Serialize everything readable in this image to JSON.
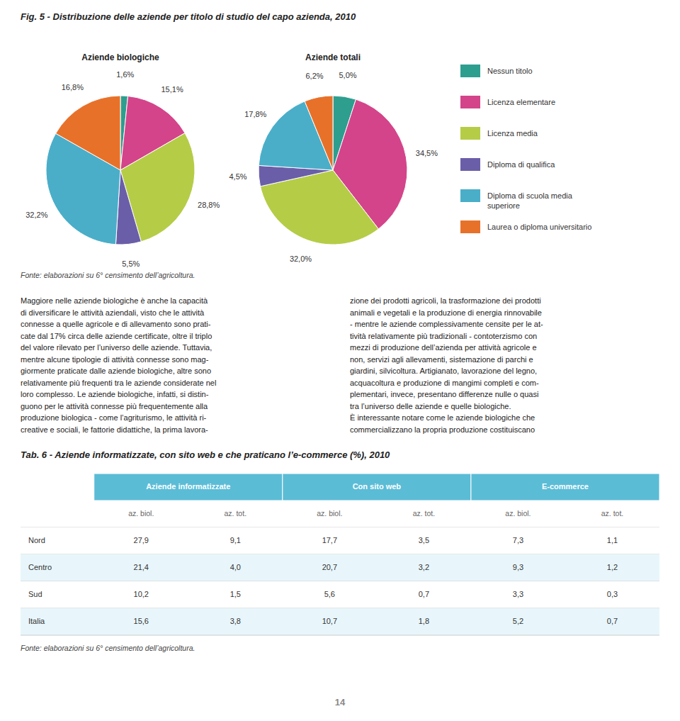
{
  "title": "Fig. 5 - Distribuzione delle aziende per titolo di studio del capo azienda, 2010",
  "annotations": [
    "Fonte: elaborazioni su 6° censimento dell’agricoltura.",
    "Maggiore nelle aziende biologiche è anche la capacità\ndi diversificare le attività aziendali, visto che le attività\nconnesse a quelle agricole e di allevamento sono prati-\ncate dal 17% circa delle aziende certificate, oltre il triplo\ndel valore rilevato per l’universo delle aziende. Tuttavia,\nmentre alcune tipologie di attività connesse sono mag-\ngiormente praticate dalle aziende biologiche, altre sono\nrelativamente più frequenti tra le aziende considerate nel\nloro complesso. Le aziende biologiche, infatti, si distin-\nguono per le attività connesse più frequentemente alla\nproduzione biologica - come l’agriturismo, le attività ri-\ncreative e sociali, le fattorie didattiche, la prima lavora-",
    "zione dei prodotti agricoli, la trasformazione dei prodotti\nanimali e vegetali e la produzione di energia rinnovabile\n- mentre le aziende complessivamente censite per le at-\ntività relativamente più tradizionali - contoterzismo con\nmezzi di produzione dell’azienda per attività agricole e\nnon, servizi agli allevamenti, sistemazione di parchi e\ngiardini, silvicoltura. Artigianato, lavorazione del legno,\nacquacoltura e produzione di mangimi completi e com-\nplementari, invece, presentano differenze nulle o quasi\ntra l’universo delle aziende e quelle biologiche.\nÈ interessante notare come le aziende biologiche che\ncommercializzano la propria produzione costituiscano",
    "Fonte: elaborazioni su 6° censimento dell’agricoltura.",
    "14"
  ],
  "chart_data": [
    {
      "type": "pie",
      "title": "Aziende biologiche",
      "categories": [
        "Nessun titolo",
        "Licenza elementare",
        "Licenza media",
        "Diploma di qualifica",
        "Diploma di scuola media\nsuperiore",
        "Laurea o diploma universitario"
      ],
      "values": [
        1.6,
        15.1,
        28.8,
        5.5,
        32.2,
        16.8
      ],
      "value_labels": [
        "1,6%",
        "15,1%",
        "28,8%",
        "5,5%",
        "32,2%",
        "16,8%"
      ],
      "colors": [
        "#2e9e8f",
        "#d4448a",
        "#b5cc47",
        "#6b5ea8",
        "#4aaec9",
        "#e8712a"
      ],
      "data_labels": true,
      "legend": "right"
    },
    {
      "type": "pie",
      "title": "Aziende totali",
      "values": [
        5.0,
        34.5,
        32.0,
        4.5,
        17.8,
        6.2
      ],
      "value_labels": [
        "5,0%",
        "34,5%",
        "32,0%",
        "4,5%",
        "17,8%",
        "6,2%"
      ],
      "colors": [
        "#2e9e8f",
        "#d4448a",
        "#b5cc47",
        "#6b5ea8",
        "#4aaec9",
        "#e8712a"
      ],
      "data_labels": true
    },
    {
      "type": "table",
      "title": "Tab. 6 - Aziende informatizzate, con sito web e che praticano l’e-commerce (%), 2010",
      "categories": [
        "Nord",
        "Centro",
        "Sud",
        "Italia"
      ],
      "column_groups": [
        "Aziende informatizzate",
        "Con sito web",
        "E-commerce"
      ],
      "series": [
        {
          "name": "az. biol.",
          "values": [
            27.9,
            21.4,
            10.2,
            15.6
          ],
          "value_labels": [
            "27,9",
            "21,4",
            "10,2",
            "15,6"
          ]
        },
        {
          "name": "az. tot.",
          "values": [
            9.1,
            4.0,
            1.5,
            3.8
          ],
          "value_labels": [
            "9,1",
            "4,0",
            "1,5",
            "3,8"
          ]
        },
        {
          "name": "az. biol.",
          "values": [
            17.7,
            20.7,
            5.6,
            10.7
          ],
          "value_labels": [
            "17,7",
            "20,7",
            "5,6",
            "10,7"
          ]
        },
        {
          "name": "az. tot.",
          "values": [
            3.5,
            3.2,
            0.7,
            1.8
          ],
          "value_labels": [
            "3,5",
            "3,2",
            "0,7",
            "1,8"
          ]
        },
        {
          "name": "az. biol.",
          "values": [
            7.3,
            9.3,
            3.3,
            5.2
          ],
          "value_labels": [
            "7,3",
            "9,3",
            "3,3",
            "5,2"
          ]
        },
        {
          "name": "az. tot.",
          "values": [
            1.1,
            1.2,
            0.3,
            0.7
          ],
          "value_labels": [
            "1,1",
            "1,2",
            "0,3",
            "0,7"
          ]
        }
      ]
    }
  ]
}
